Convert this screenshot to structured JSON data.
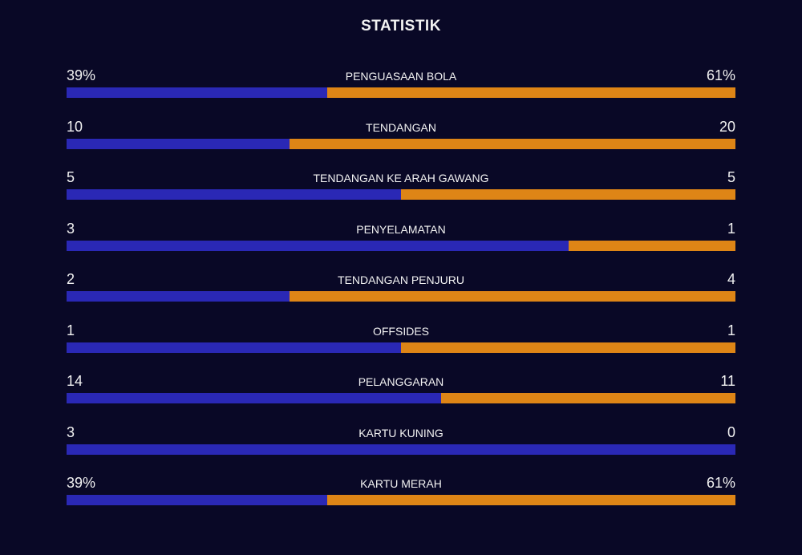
{
  "title": "STATISTIK",
  "rows": [
    {
      "label": "PENGUASAAN BOLA",
      "home": {
        "value": 39,
        "label": "39%"
      },
      "away": {
        "value": 61,
        "label": "61%"
      }
    },
    {
      "label": "TENDANGAN",
      "home": 10,
      "away": 20
    },
    {
      "label": "TENDANGAN KE ARAH GAWANG",
      "home": 5,
      "away": 5
    },
    {
      "label": "PENYELAMATAN",
      "home": 3,
      "away": 1
    },
    {
      "label": "TENDANGAN PENJURU",
      "home": 2,
      "away": 4
    },
    {
      "label": "OFFSIDES",
      "home": 1,
      "away": 1
    },
    {
      "label": "PELANGGARAN",
      "home": 14,
      "away": 11
    },
    {
      "label": "KARTU KUNING",
      "home": 3,
      "away": 0
    },
    {
      "label": "KARTU MERAH",
      "home": {
        "value": 39,
        "label": "39%"
      },
      "away": {
        "value": 61,
        "label": "61%"
      }
    }
  ],
  "home_color": "#2a28b5",
  "away_color": "#de8516"
}
